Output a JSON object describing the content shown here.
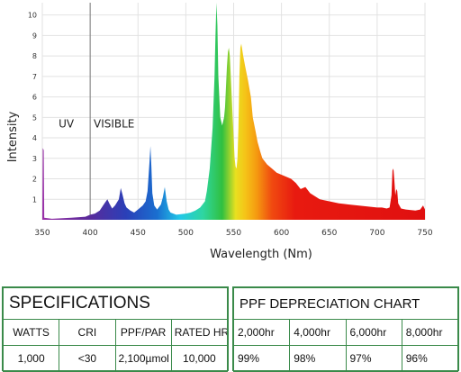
{
  "chart_data": {
    "type": "area",
    "title": "",
    "xlabel": "Wavelength (Nm)",
    "ylabel": "Intensity",
    "xlim": [
      350,
      750
    ],
    "ylim": [
      0,
      10.6
    ],
    "x_ticks": [
      "350",
      "400",
      "450",
      "500",
      "550",
      "600",
      "650",
      "700",
      "750"
    ],
    "y_ticks": [
      "1",
      "2",
      "3",
      "4",
      "5",
      "6",
      "7",
      "8",
      "9",
      "10"
    ],
    "grid": true,
    "annotations": [
      {
        "text": "UV",
        "x": 375,
        "y": 4.5
      },
      {
        "text": "VISIBLE",
        "x": 425,
        "y": 4.5
      }
    ],
    "divider_x": 400,
    "series": [
      {
        "x": [
          350,
          350.5,
          351.5,
          352,
          360,
          380,
          395,
          400,
          405,
          410,
          415,
          418,
          420,
          423,
          426,
          430,
          432,
          434,
          436,
          438,
          442,
          446,
          450,
          455,
          458,
          460,
          462,
          463,
          464,
          465,
          467,
          470,
          474,
          476,
          478,
          480,
          482,
          484,
          490,
          500,
          505,
          510,
          515,
          520,
          522,
          525,
          528,
          530,
          531,
          532,
          533,
          534,
          536,
          538,
          540,
          541,
          542,
          543,
          544,
          545,
          546,
          548,
          550,
          551,
          552,
          553,
          554,
          555,
          556,
          557,
          558,
          560,
          562,
          565,
          568,
          570,
          573,
          575,
          578,
          580,
          585,
          590,
          595,
          600,
          605,
          610,
          615,
          620,
          625,
          630,
          640,
          650,
          660,
          670,
          680,
          690,
          700,
          705,
          710,
          713,
          715,
          716,
          717,
          718,
          719,
          720,
          721,
          722,
          725,
          730,
          740,
          745,
          748,
          750
        ],
        "y": [
          0.05,
          3.5,
          3.4,
          0.1,
          0.05,
          0.1,
          0.15,
          0.25,
          0.3,
          0.45,
          0.8,
          1.0,
          0.8,
          0.55,
          0.7,
          1.0,
          1.55,
          1.2,
          0.8,
          0.6,
          0.45,
          0.35,
          0.5,
          0.7,
          0.9,
          1.4,
          2.8,
          3.6,
          2.6,
          1.3,
          0.7,
          0.5,
          0.75,
          1.1,
          1.6,
          0.9,
          0.5,
          0.35,
          0.25,
          0.3,
          0.35,
          0.45,
          0.6,
          0.9,
          1.4,
          2.5,
          4.5,
          7.0,
          9.0,
          10.6,
          9.5,
          7.0,
          5.0,
          4.6,
          5.0,
          5.5,
          6.5,
          7.5,
          8.2,
          8.4,
          8.0,
          6.0,
          4.0,
          3.0,
          2.6,
          2.5,
          3.0,
          4.5,
          7.0,
          8.4,
          8.6,
          8.0,
          7.5,
          6.8,
          6.0,
          5.0,
          4.3,
          3.8,
          3.3,
          3.0,
          2.7,
          2.5,
          2.3,
          2.2,
          2.1,
          2.0,
          1.8,
          1.5,
          1.6,
          1.3,
          1.0,
          0.9,
          0.8,
          0.75,
          0.7,
          0.65,
          0.6,
          0.6,
          0.55,
          0.6,
          1.2,
          2.4,
          2.5,
          1.9,
          1.2,
          1.5,
          1.4,
          0.8,
          0.55,
          0.5,
          0.45,
          0.5,
          0.7,
          0.5
        ]
      }
    ]
  },
  "specifications": {
    "title": "SPECIFICATIONS",
    "headers": [
      "WATTS",
      "CRI",
      "PPF/PAR",
      "RATED HRS"
    ],
    "values": [
      "1,000",
      "<30",
      "2,100µmol",
      "10,000"
    ]
  },
  "ppf_depreciation": {
    "title": "PPF DEPRECIATION CHART",
    "headers": [
      "2,000hr",
      "4,000hr",
      "6,000hr",
      "8,000hr"
    ],
    "values": [
      "99%",
      "98%",
      "97%",
      "96%"
    ]
  }
}
